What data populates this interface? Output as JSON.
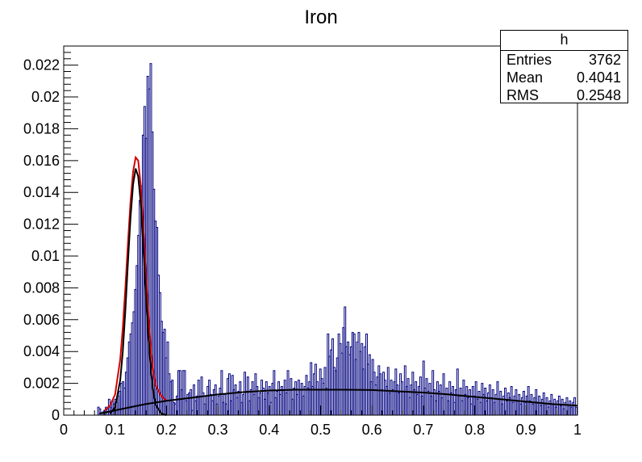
{
  "chart_data": {
    "type": "histogram",
    "title": "Iron",
    "xlabel": "",
    "ylabel": "",
    "xlim": [
      0,
      1
    ],
    "ylim": [
      0,
      0.0232
    ],
    "x_ticks": [
      "0",
      "0.1",
      "0.2",
      "0.3",
      "0.4",
      "0.5",
      "0.6",
      "0.7",
      "0.8",
      "0.9",
      "1"
    ],
    "y_ticks": [
      "0",
      "0.002",
      "0.004",
      "0.006",
      "0.008",
      "0.01",
      "0.012",
      "0.014",
      "0.016",
      "0.018",
      "0.02",
      "0.022"
    ],
    "grid": false,
    "histogram": {
      "x_start": 0.0,
      "bin_width": 0.003,
      "values": [
        0,
        0,
        0,
        0,
        0,
        0,
        0,
        0,
        0,
        0,
        0,
        0,
        0,
        0,
        0,
        0,
        0,
        0,
        0,
        0,
        0,
        0,
        0.0005,
        0.0004,
        0,
        0.0002,
        0.0003,
        0.0005,
        0.0004,
        0.001,
        0.0005,
        0.0009,
        0.0007,
        0.001,
        0.0008,
        0.0012,
        0.0015,
        0.002,
        0.0021,
        0.0017,
        0.0027,
        0.0036,
        0.0046,
        0.0051,
        0.0058,
        0.0065,
        0.0079,
        0.0094,
        0.0113,
        0.0135,
        0.0144,
        0.0176,
        0.0194,
        0.0174,
        0.0213,
        0.0205,
        0.0221,
        0.0178,
        0.0142,
        0.0122,
        0.0118,
        0.0088,
        0.0077,
        0.0059,
        0.0052,
        0.0054,
        0.0036,
        0.0046,
        0.0026,
        0.0021,
        0.0022,
        0.0008,
        0.0007,
        0.0012,
        0.0028,
        0.0028,
        0.0016,
        0.0028,
        0.0028,
        0.0009,
        0.0013,
        0.0014,
        0.0016,
        0.0003,
        0.0019,
        0.0009,
        0.0012,
        0.0022,
        0.0012,
        0.0024,
        0.0014,
        0.0007,
        0.0012,
        0.0018,
        0.0022,
        0.0013,
        0.0009,
        0.0016,
        0.0019,
        0.0007,
        0.0012,
        0.0017,
        0.0028,
        0.0008,
        0.0013,
        0.0007,
        0.0023,
        0.0026,
        0.0009,
        0.0025,
        0.0016,
        0.0019,
        0.0011,
        0.0015,
        0.0021,
        0.0008,
        0.0013,
        0.0027,
        0.0015,
        0.0024,
        0.0009,
        0.0016,
        0.0021,
        0.0013,
        0.0026,
        0.0018,
        0.0011,
        0.0014,
        0.0022,
        0.0017,
        0.001,
        0.0021,
        0.0014,
        0.0018,
        0.0008,
        0.002,
        0.0028,
        0.0011,
        0.0015,
        0.0021,
        0.0013,
        0.0018,
        0.0016,
        0.0022,
        0.0014,
        0.0028,
        0.0016,
        0.0023,
        0.001,
        0.0017,
        0.0021,
        0.0013,
        0.0022,
        0.0016,
        0.002,
        0.0012,
        0.0018,
        0.0025,
        0.0017,
        0.0021,
        0.0033,
        0.0018,
        0.0026,
        0.0032,
        0.0021,
        0.0016,
        0.0029,
        0.0023,
        0.002,
        0.003,
        0.0017,
        0.0051,
        0.0037,
        0.0041,
        0.0048,
        0.003,
        0.0028,
        0.0036,
        0.0051,
        0.0045,
        0.0039,
        0.0055,
        0.0068,
        0.0043,
        0.0046,
        0.0038,
        0.0043,
        0.0052,
        0.0051,
        0.0035,
        0.0046,
        0.0052,
        0.004,
        0.0045,
        0.0029,
        0.0043,
        0.0051,
        0.0032,
        0.0038,
        0.0021,
        0.0035,
        0.0027,
        0.0019,
        0.0024,
        0.0031,
        0.0026,
        0.0016,
        0.0027,
        0.0022,
        0.0018,
        0.003,
        0.0014,
        0.0022,
        0.0016,
        0.0021,
        0.0029,
        0.0019,
        0.0014,
        0.0026,
        0.0021,
        0.0015,
        0.0031,
        0.0018,
        0.0023,
        0.0011,
        0.0019,
        0.0027,
        0.0016,
        0.0021,
        0.0013,
        0.0018,
        0.0024,
        0.0012,
        0.0034,
        0.0017,
        0.0023,
        0.0015,
        0.002,
        0.0012,
        0.0028,
        0.0016,
        0.0009,
        0.0021,
        0.0015,
        0.0019,
        0.0011,
        0.0026,
        0.0013,
        0.0017,
        0.0009,
        0.0021,
        0.0014,
        0.0018,
        0.0008,
        0.0016,
        0.0029,
        0.0012,
        0.0017,
        0.0009,
        0.0022,
        0.0013,
        0.0018,
        0.0011,
        0.0016,
        0.0007,
        0.0018,
        0.0012,
        0.0021,
        0.001,
        0.0015,
        0.0008,
        0.002,
        0.0013,
        0.0017,
        0.0009,
        0.0014,
        0.0019,
        0.0011,
        0.0016,
        0.0008,
        0.0013,
        0.0021,
        0.001,
        0.0015,
        0.0007,
        0.0012,
        0.0017,
        0.0009,
        0.0014,
        0.0011,
        0.0018,
        0.0008,
        0.0012,
        0.0016,
        0.0009,
        0.0013,
        0.0007,
        0.0011,
        0.0015,
        0.0008,
        0.0012,
        0.0018,
        0.0009,
        0.0013,
        0.0007,
        0.0011,
        0.0016,
        0.0008,
        0.0012,
        0.0006,
        0.001,
        0.0014,
        0.0007,
        0.0011,
        0.0005,
        0.0009,
        0.0013,
        0.0007,
        0.001,
        0.0005,
        0.0009,
        0.0012,
        0.0006,
        0.001,
        0.0004,
        0.0008,
        0.0011,
        0.0006,
        0.0009,
        0.0005,
        0.0008,
        0.0011,
        0.0005,
        0.0008,
        0.0004
      ]
    },
    "curves": [
      {
        "color": "#d40000",
        "x": [
          0.08,
          0.09,
          0.1,
          0.11,
          0.115,
          0.12,
          0.125,
          0.13,
          0.135,
          0.14,
          0.145,
          0.15,
          0.155,
          0.16,
          0.165,
          0.17,
          0.175,
          0.18,
          0.19,
          0.2
        ],
        "y": [
          0.0003,
          0.0006,
          0.0013,
          0.0035,
          0.0055,
          0.008,
          0.0108,
          0.0134,
          0.0153,
          0.0162,
          0.016,
          0.0144,
          0.0118,
          0.0088,
          0.0062,
          0.004,
          0.0026,
          0.0018,
          0.0012,
          0.0009
        ]
      },
      {
        "color": "#000000",
        "x": [
          0.09,
          0.1,
          0.11,
          0.115,
          0.12,
          0.125,
          0.13,
          0.135,
          0.14,
          0.145,
          0.15,
          0.155,
          0.16,
          0.165,
          0.17,
          0.175,
          0.18,
          0.19,
          0.2
        ],
        "y": [
          0.0001,
          0.0005,
          0.0022,
          0.004,
          0.0066,
          0.0096,
          0.0124,
          0.0145,
          0.0155,
          0.015,
          0.0133,
          0.0105,
          0.0075,
          0.0048,
          0.0027,
          0.0013,
          0.0006,
          0.0001,
          0.0
        ]
      },
      {
        "color": "#000000",
        "x": [
          0.07,
          0.1,
          0.13,
          0.16,
          0.2,
          0.25,
          0.3,
          0.35,
          0.4,
          0.45,
          0.5,
          0.55,
          0.6,
          0.65,
          0.7,
          0.75,
          0.8,
          0.85,
          0.9,
          0.95,
          1.0
        ],
        "y": [
          0.0001,
          0.0003,
          0.0005,
          0.0007,
          0.0009,
          0.0011,
          0.0013,
          0.00145,
          0.00155,
          0.0016,
          0.0016,
          0.0016,
          0.00158,
          0.0015,
          0.00142,
          0.0013,
          0.00115,
          0.001,
          0.00085,
          0.0007,
          0.0006
        ]
      }
    ],
    "stats_box": {
      "title": "h",
      "rows": [
        {
          "label": "Entries",
          "value": "3762"
        },
        {
          "label": "Mean",
          "value": "0.4041"
        },
        {
          "label": "RMS",
          "value": "0.2548"
        }
      ]
    },
    "colors": {
      "histogram": "#00007f",
      "fit_total": "#d40000",
      "fit_component": "#000000"
    }
  }
}
